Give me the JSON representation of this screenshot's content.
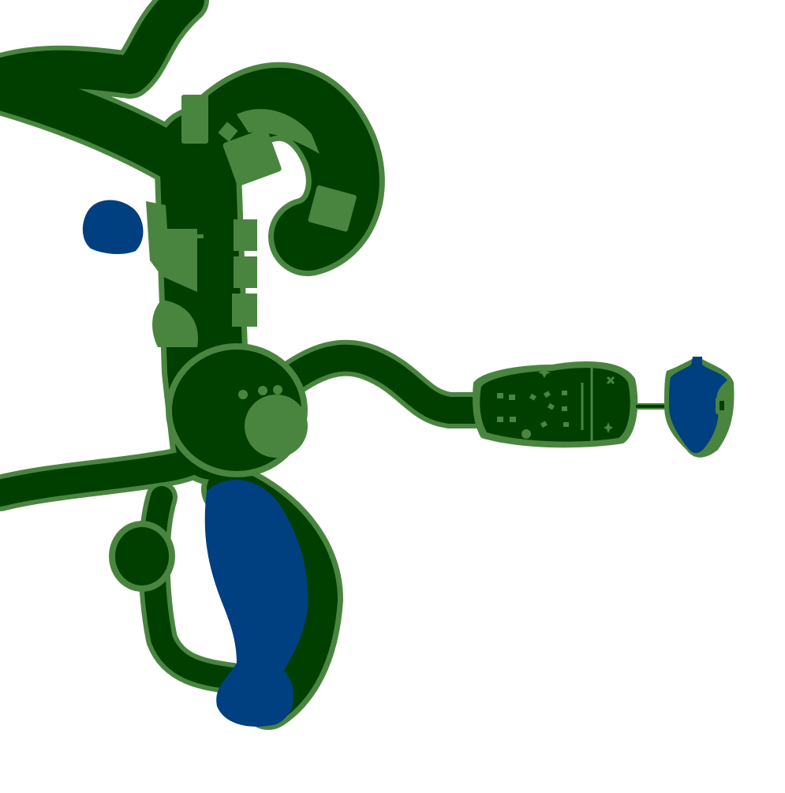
{
  "map": {
    "colors": {
      "background": "#ffffff",
      "terrain": "#003f00",
      "outline": "#4a8540",
      "water": "#003f80",
      "building": "#4a8540"
    },
    "features": [
      "terrain-region",
      "lake",
      "building",
      "trail"
    ]
  }
}
